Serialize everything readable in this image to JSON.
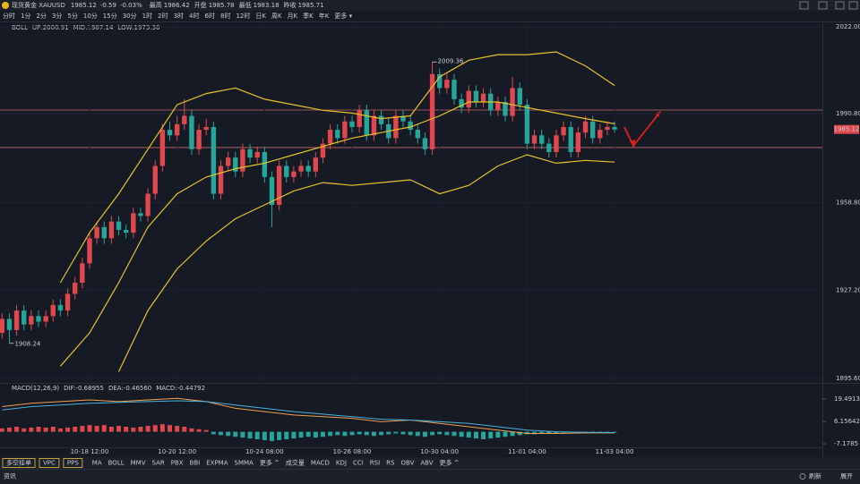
{
  "header": {
    "name": "现货黄金 XAUUSD",
    "price": 1985.12,
    "change": -0.59,
    "change_pct": "-0.03%",
    "stats": [
      {
        "label": "最高",
        "value": 1986.42,
        "color": "#e0484e"
      },
      {
        "label": "开盘",
        "value": 1985.78,
        "color": "#e0484e"
      },
      {
        "label": "最低",
        "value": 1983.18,
        "color": "#26a69a"
      },
      {
        "label": "昨收",
        "value": 1985.71,
        "color": "#9aa0aa"
      }
    ]
  },
  "periods": [
    "分时",
    "1分",
    "2分",
    "3分",
    "5分",
    "10分",
    "15分",
    "30分",
    "1时",
    "2时",
    "3时",
    "4时",
    "6时",
    "8时",
    "12时",
    "日K",
    "周K",
    "月K",
    "季K",
    "年K",
    "更多 ▾"
  ],
  "active_period": "4时",
  "indicator_buttons": [
    "多空挂单",
    "VPC",
    "PPS"
  ],
  "indicators": [
    "MA",
    "BOLL",
    "MMV",
    "SAR",
    "PBX",
    "BBI",
    "EXPMA",
    "SMMA",
    "更多 ^",
    "成交量",
    "MACD",
    "KDJ",
    "CCI",
    "RSI",
    "RS",
    "OBV",
    "ABV",
    "更多 ^"
  ],
  "footer": {
    "left": "资讯",
    "refresh": "刷新",
    "expand": "展开"
  },
  "chart_data": [
    {
      "type": "candlestick",
      "legend": [
        "BOLL",
        "UP:2000.91",
        "MID:1987.14",
        "LOW:1973.36"
      ],
      "legend_colors": [
        "#e6e6e6",
        "#e6c229",
        "#e6c229",
        "#e6c229"
      ],
      "categories": [
        null,
        null,
        null,
        null,
        null,
        null,
        null,
        null,
        null,
        null,
        null,
        null,
        "10-18 12:00",
        null,
        null,
        null,
        null,
        null,
        null,
        null,
        null,
        null,
        null,
        null,
        "10-20 12:00",
        null,
        null,
        null,
        null,
        null,
        null,
        null,
        null,
        null,
        null,
        null,
        "10-24 08:00",
        null,
        null,
        null,
        null,
        null,
        null,
        null,
        null,
        null,
        null,
        null,
        "10-26 08:00",
        null,
        null,
        null,
        null,
        null,
        null,
        null,
        null,
        null,
        null,
        null,
        "10-30 04:00",
        null,
        null,
        null,
        null,
        null,
        null,
        null,
        null,
        null,
        null,
        null,
        "11-01 04:00",
        null,
        null,
        null,
        null,
        null,
        null,
        null,
        null,
        null,
        null,
        null,
        "11-03 04:00"
      ],
      "open": [
        1912,
        1917,
        1913,
        1920,
        1915,
        1918,
        1916,
        1918,
        1922,
        1920,
        1926,
        1930,
        1937,
        1946,
        1950,
        1946,
        1952,
        1949,
        1948,
        1955,
        1954,
        1962,
        1972,
        1985,
        1983,
        1987,
        1990,
        1978,
        1985,
        1986,
        1962,
        1972,
        1975,
        1970,
        1978,
        1975,
        1977,
        1968,
        1958,
        1972,
        1968,
        1970,
        1972,
        1970,
        1975,
        1980,
        1985,
        1982,
        1988,
        1986,
        1992,
        1983,
        1990,
        1987,
        1982,
        1990,
        1988,
        1985,
        1982,
        1978,
        2005,
        2000,
        2003,
        1996,
        1993,
        1999,
        1995,
        1998,
        1992,
        1995,
        1990,
        2000,
        1994,
        1980,
        1983,
        1980,
        1977,
        1983,
        1986,
        1977,
        1984,
        1988,
        1982,
        1985,
        1986
      ],
      "high": [
        1919,
        1919,
        1922,
        1922,
        1920,
        1920,
        1920,
        1924,
        1924,
        1928,
        1932,
        1939,
        1948,
        1952,
        1952,
        1954,
        1954,
        1951,
        1957,
        1957,
        1964,
        1974,
        1987,
        1988,
        1990,
        1996,
        1992,
        1987,
        1989,
        1988,
        1974,
        1977,
        1977,
        1980,
        1980,
        1979,
        1979,
        1970,
        1974,
        1974,
        1972,
        1974,
        1974,
        1977,
        1982,
        1987,
        1987,
        1990,
        1990,
        1994,
        1994,
        1992,
        1992,
        1989,
        1992,
        1992,
        1990,
        1987,
        1984,
        2009.36,
        2007,
        2005,
        2005,
        1998,
        2001,
        2001,
        2000,
        2000,
        1997,
        1997,
        2004,
        2002,
        1996,
        1985,
        1985,
        1982,
        1985,
        1988,
        1988,
        1986,
        1990,
        1990,
        1987,
        1988,
        1988
      ],
      "low": [
        1910,
        1908.24,
        1911,
        1913,
        1913,
        1914,
        1914,
        1916,
        1918,
        1918,
        1924,
        1928,
        1935,
        1944,
        1944,
        1944,
        1947,
        1946,
        1946,
        1952,
        1952,
        1960,
        1970,
        1981,
        1981,
        1985,
        1976,
        1976,
        1983,
        1960,
        1960,
        1970,
        1968,
        1968,
        1973,
        1973,
        1966,
        1950,
        1956,
        1966,
        1966,
        1968,
        1968,
        1968,
        1973,
        1978,
        1980,
        1980,
        1984,
        1984,
        1981,
        1981,
        1985,
        1980,
        1980,
        1986,
        1983,
        1980,
        1976,
        1976,
        1998,
        1998,
        1994,
        1991,
        1991,
        1993,
        1993,
        1990,
        1990,
        1988,
        1988,
        1992,
        1978,
        1978,
        1978,
        1975,
        1975,
        1981,
        1975,
        1975,
        1982,
        1980,
        1980,
        1983,
        1984
      ],
      "close": [
        1917,
        1913,
        1920,
        1915,
        1918,
        1916,
        1918,
        1922,
        1920,
        1926,
        1930,
        1937,
        1946,
        1950,
        1946,
        1952,
        1949,
        1948,
        1955,
        1954,
        1962,
        1972,
        1985,
        1983,
        1987,
        1990,
        1978,
        1985,
        1986,
        1962,
        1972,
        1975,
        1970,
        1978,
        1975,
        1977,
        1968,
        1958,
        1972,
        1968,
        1970,
        1972,
        1970,
        1975,
        1980,
        1985,
        1982,
        1988,
        1986,
        1992,
        1983,
        1990,
        1987,
        1982,
        1990,
        1988,
        1985,
        1982,
        1978,
        2005,
        2000,
        2003,
        1996,
        1993,
        1999,
        1995,
        1998,
        1992,
        1995,
        1990,
        2000,
        1994,
        1980,
        1983,
        1980,
        1977,
        1983,
        1986,
        1977,
        1984,
        1988,
        1982,
        1985,
        1986,
        1985.12
      ],
      "up_color": "#e0484e",
      "down_color": "#26a69a",
      "bands": [
        {
          "color": "#e6c229",
          "x": [
            8,
            12,
            16,
            20,
            24,
            28,
            32,
            36,
            40,
            44,
            48,
            52,
            56,
            60,
            64,
            68,
            72,
            76,
            80,
            84
          ],
          "values": [
            1930,
            1948,
            1962,
            1978,
            1994,
            1998,
            2000,
            1996,
            1994,
            1992,
            1991,
            1989,
            1990,
            2004,
            2010,
            2012,
            2012,
            2013,
            2008,
            2000.91
          ]
        },
        {
          "color": "#e6c229",
          "x": [
            8,
            12,
            16,
            20,
            24,
            28,
            32,
            36,
            40,
            44,
            48,
            52,
            56,
            60,
            64,
            68,
            72,
            76,
            80,
            84
          ],
          "values": [
            1900,
            1912,
            1930,
            1950,
            1962,
            1968,
            1971,
            1973,
            1976,
            1979,
            1982,
            1984,
            1986,
            1990,
            1995,
            1995,
            1993,
            1991,
            1989,
            1987.14
          ]
        },
        {
          "color": "#e6c229",
          "x": [
            16,
            20,
            24,
            28,
            32,
            36,
            40,
            44,
            48,
            52,
            56,
            60,
            64,
            68,
            72,
            76,
            80,
            84
          ],
          "values": [
            1898,
            1920,
            1935,
            1945,
            1953,
            1958,
            1963,
            1966,
            1965,
            1966,
            1967,
            1962,
            1965,
            1972,
            1976,
            1973,
            1974,
            1973.36
          ]
        }
      ],
      "levels": {
        "color": "#c46a6a",
        "values": [
          1992.1,
          1978.6
        ]
      },
      "ylim": [
        1894.3,
        2023.3
      ],
      "yticks": [
        {
          "value": 2022,
          "label": "2022.00"
        },
        {
          "value": 1990.8,
          "label": "1990.80"
        },
        {
          "value": 1958.8,
          "label": "1958.80"
        },
        {
          "value": 1927.2,
          "label": "1927.20"
        },
        {
          "value": 1895.6,
          "label": "1895.60"
        }
      ],
      "grid": true
    },
    {
      "type": "macd",
      "legend": [
        "MACD(12,26,9)",
        "DIF:-0.68955",
        "DEA:-0.46560",
        "MACD:-0.44792"
      ],
      "legend_colors": [
        "#e6e6e6",
        "#f0a050",
        "#4ab0d9",
        "#b07be0"
      ],
      "histogram": [
        2,
        2.5,
        3,
        2,
        2.5,
        3,
        2.5,
        3,
        2,
        2.5,
        3,
        3.5,
        4,
        3.5,
        4,
        3,
        3.5,
        3,
        2.5,
        3,
        3.5,
        4,
        4.5,
        4,
        3.5,
        3,
        2,
        1.5,
        1,
        -1.5,
        -2,
        -2.5,
        -3,
        -3.5,
        -4,
        -4.5,
        -5,
        -5.5,
        -5,
        -4.5,
        -4,
        -3.5,
        -3,
        -3.5,
        -3,
        -2.5,
        -2,
        -2.5,
        -2,
        -1.5,
        -2,
        -2.5,
        -2,
        -1.5,
        -1,
        -1.5,
        -2,
        -2.5,
        -3,
        -2,
        -1.5,
        -2,
        -2.5,
        -3,
        -3.5,
        -4,
        -4.5,
        -4,
        -3.5,
        -3,
        -2.5,
        -2,
        -1.5,
        -1.5,
        -1,
        -1,
        -0.8,
        -0.6,
        -0.5,
        -0.5,
        -0.4,
        -0.3,
        -0.4,
        -0.45,
        -0.44792
      ],
      "series": [
        {
          "color": "#f0a050",
          "x": [
            0,
            4,
            8,
            12,
            16,
            20,
            24,
            28,
            32,
            36,
            40,
            44,
            48,
            52,
            56,
            60,
            64,
            68,
            72,
            76,
            80,
            84
          ],
          "values": [
            15,
            17,
            18,
            19,
            18,
            19,
            20,
            18,
            14,
            12,
            10,
            9,
            8,
            6,
            7,
            5,
            3,
            1,
            -1,
            -1,
            -0.7,
            -0.68955
          ]
        },
        {
          "color": "#4ab0d9",
          "x": [
            0,
            4,
            8,
            12,
            16,
            20,
            24,
            28,
            32,
            36,
            40,
            44,
            48,
            52,
            56,
            60,
            64,
            68,
            72,
            76,
            80,
            84
          ],
          "values": [
            13,
            15,
            16,
            17,
            17.5,
            18,
            18.5,
            18,
            16,
            14,
            12,
            10.5,
            9,
            7.5,
            7,
            6,
            5,
            3,
            1,
            0,
            -0.4,
            -0.4656
          ]
        }
      ],
      "ylim": [
        -10.9,
        26.5
      ],
      "yticks": [
        19.49138,
        6.15642,
        -7.1785
      ]
    }
  ]
}
